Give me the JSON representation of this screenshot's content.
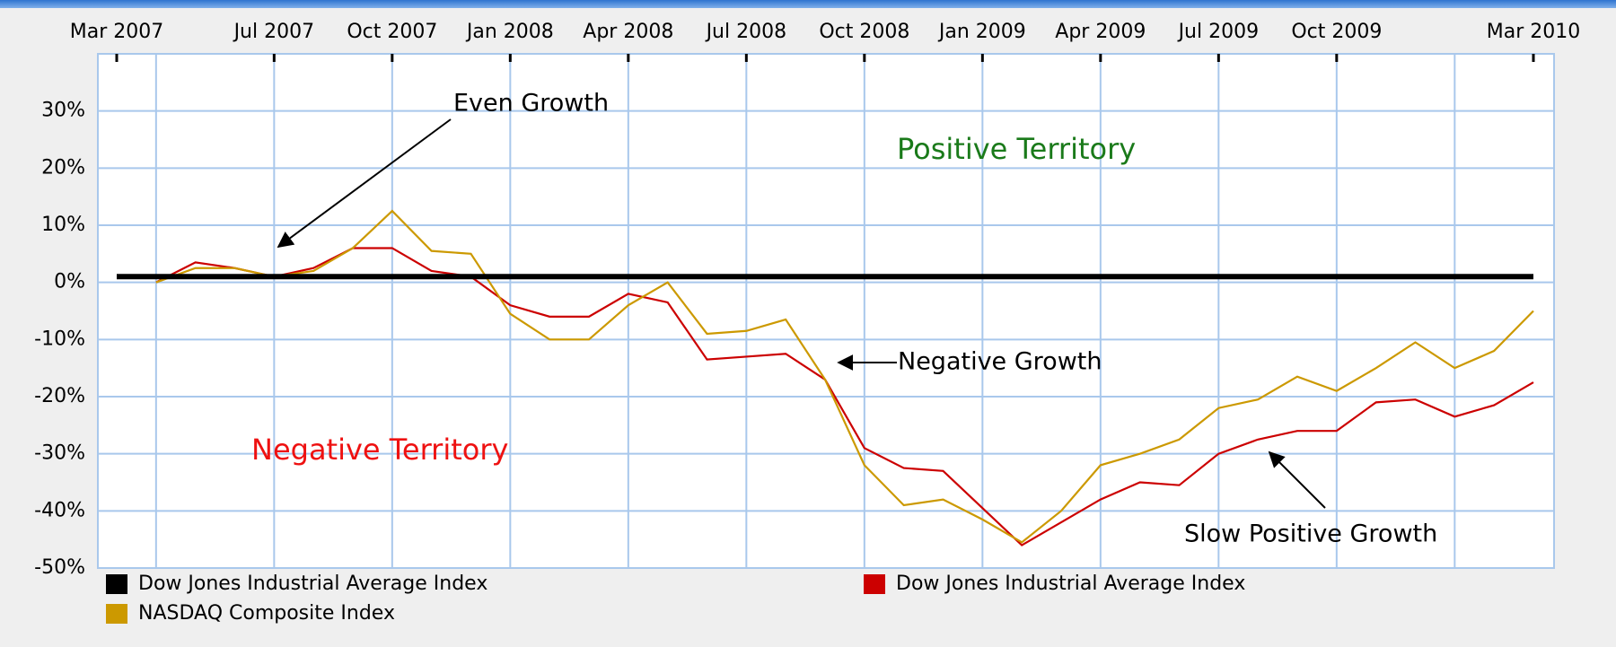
{
  "chart_data": {
    "type": "line",
    "xticks": [
      {
        "value": "2007-03",
        "label": "Mar 2007"
      },
      {
        "value": "2007-07",
        "label": "Jul 2007"
      },
      {
        "value": "2007-10",
        "label": "Oct 2007"
      },
      {
        "value": "2008-01",
        "label": "Jan 2008"
      },
      {
        "value": "2008-04",
        "label": "Apr 2008"
      },
      {
        "value": "2008-07",
        "label": "Jul 2008"
      },
      {
        "value": "2008-10",
        "label": "Oct 2008"
      },
      {
        "value": "2009-01",
        "label": "Jan 2009"
      },
      {
        "value": "2009-04",
        "label": "Apr 2009"
      },
      {
        "value": "2009-07",
        "label": "Jul 2009"
      },
      {
        "value": "2009-10",
        "label": "Oct 2009"
      },
      {
        "value": "2010-03",
        "label": "Mar 2010"
      }
    ],
    "xlim": [
      "2007-03",
      "2010-03"
    ],
    "ylim": [
      -50,
      40
    ],
    "yticks": [
      {
        "value": -50,
        "label": "-50%"
      },
      {
        "value": -40,
        "label": "-40%"
      },
      {
        "value": -30,
        "label": "-30%"
      },
      {
        "value": -20,
        "label": "-20%"
      },
      {
        "value": -10,
        "label": "-10%"
      },
      {
        "value": 0,
        "label": "0%"
      },
      {
        "value": 10,
        "label": "10%"
      },
      {
        "value": 20,
        "label": "20%"
      },
      {
        "value": 30,
        "label": "30%"
      }
    ],
    "grid": true,
    "annotations": [
      "Even Growth",
      "Positive Territory",
      "Negative Territory",
      "Negative Growth",
      "Slow Positive Growth"
    ],
    "series": [
      {
        "name": "Dow Jones Industrial Average Index",
        "color": "#000000",
        "x": [
          "2007-03",
          "2010-03"
        ],
        "values": [
          1,
          1
        ]
      },
      {
        "name": "Dow Jones Industrial Average Index",
        "color": "#cc0000",
        "x": [
          "2007-04",
          "2007-05",
          "2007-06",
          "2007-07",
          "2007-08",
          "2007-09",
          "2007-10",
          "2007-11",
          "2007-12",
          "2008-01",
          "2008-02",
          "2008-03",
          "2008-04",
          "2008-05",
          "2008-06",
          "2008-07",
          "2008-08",
          "2008-09",
          "2008-10",
          "2008-11",
          "2008-12",
          "2009-01",
          "2009-02",
          "2009-03",
          "2009-04",
          "2009-05",
          "2009-06",
          "2009-07",
          "2009-08",
          "2009-09",
          "2009-10",
          "2009-11",
          "2009-12",
          "2010-01",
          "2010-02",
          "2010-03"
        ],
        "values": [
          0,
          3.5,
          2.5,
          1,
          2.5,
          6,
          6,
          2,
          1,
          -4,
          -6,
          -6,
          -2,
          -3.5,
          -13.5,
          -13,
          -12.5,
          -17,
          -29,
          -32.5,
          -33,
          -39.5,
          -46,
          -42,
          -38,
          -35,
          -35.5,
          -30,
          -27.5,
          -26,
          -26,
          -21,
          -20.5,
          -23.5,
          -21.5,
          -17.5
        ]
      },
      {
        "name": "NASDAQ Composite Index",
        "color": "#cc9900",
        "x": [
          "2007-04",
          "2007-05",
          "2007-06",
          "2007-07",
          "2007-08",
          "2007-09",
          "2007-10",
          "2007-11",
          "2007-12",
          "2008-01",
          "2008-02",
          "2008-03",
          "2008-04",
          "2008-05",
          "2008-06",
          "2008-07",
          "2008-08",
          "2008-09",
          "2008-10",
          "2008-11",
          "2008-12",
          "2009-01",
          "2009-02",
          "2009-03",
          "2009-04",
          "2009-05",
          "2009-06",
          "2009-07",
          "2009-08",
          "2009-09",
          "2009-10",
          "2009-11",
          "2009-12",
          "2010-01",
          "2010-02",
          "2010-03"
        ],
        "values": [
          0,
          2.5,
          2.5,
          1,
          2,
          6,
          12.5,
          5.5,
          5,
          -5.5,
          -10,
          -10,
          -4,
          0,
          -9,
          -8.5,
          -6.5,
          -17,
          -32,
          -39,
          -38,
          -41.5,
          -45.5,
          -40,
          -32,
          -30,
          -27.5,
          -22,
          -20.5,
          -16.5,
          -19,
          -15,
          -10.5,
          -15,
          -12,
          -5
        ]
      }
    ]
  }
}
